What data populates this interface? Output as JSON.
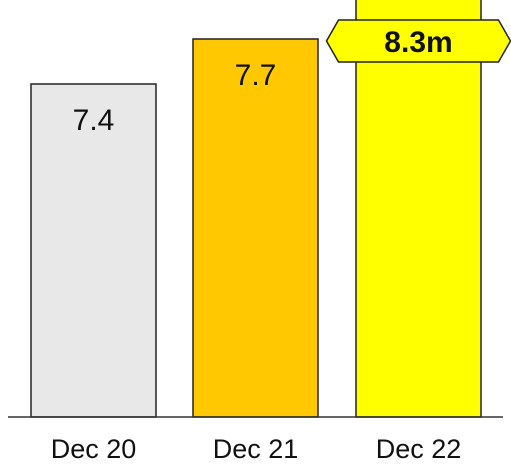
{
  "chart_data": {
    "type": "bar",
    "categories": [
      "Dec 20",
      "Dec 21",
      "Dec 22"
    ],
    "values": [
      7.4,
      7.7,
      8.3
    ],
    "value_labels": [
      "7.4",
      "7.7",
      ""
    ],
    "callout": {
      "category": "Dec 22",
      "text": "8.3m"
    },
    "title": "",
    "xlabel": "",
    "ylabel": "",
    "grid": false,
    "legend": "none"
  },
  "colors": {
    "bars": [
      "#e8e8e8",
      "#ffc800",
      "#ffff00"
    ],
    "callout_fill": "#ffff00",
    "outline": "#222222"
  }
}
